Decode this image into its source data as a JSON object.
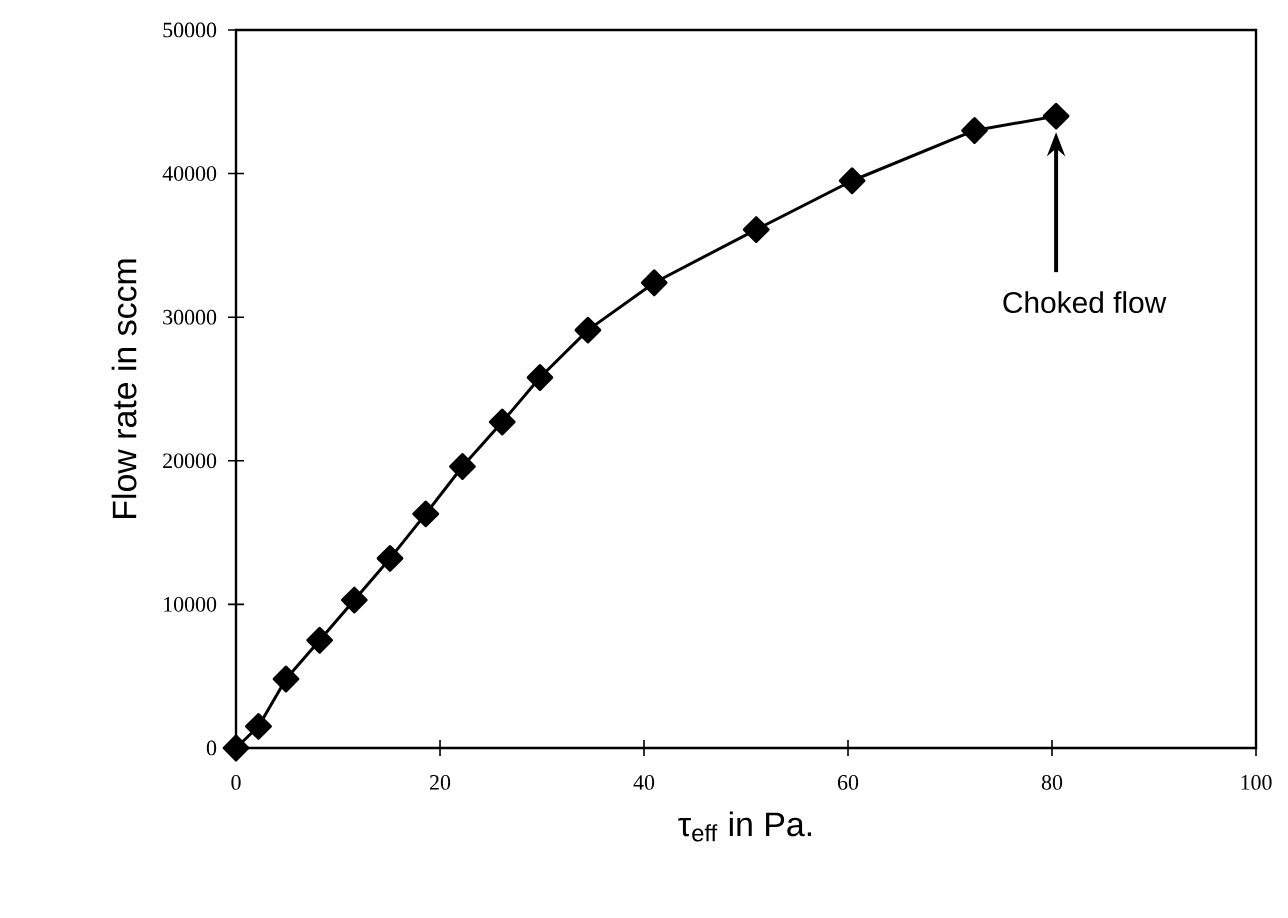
{
  "chart_data": {
    "type": "line",
    "xlabel": "τ$_{eff}$ in Pa.",
    "ylabel": "Flow rate in sccm",
    "x": [
      0,
      2.2,
      4.9,
      8.2,
      11.6,
      15.1,
      18.6,
      22.2,
      26.1,
      29.8,
      34.5,
      41.0,
      51.0,
      60.4,
      72.4,
      80.4
    ],
    "series": [
      {
        "color": "#000000",
        "values": [
          0,
          1500,
          4800,
          7500,
          10300,
          13200,
          16300,
          19600,
          22700,
          25800,
          29100,
          32400,
          36100,
          39500,
          43000,
          44000
        ]
      }
    ],
    "xlim": [
      0,
      100
    ],
    "xticks": [
      0,
      20,
      40,
      60,
      80,
      100
    ],
    "ylim": [
      0,
      50000
    ],
    "yticks": [
      0,
      10000,
      20000,
      30000,
      40000,
      50000
    ],
    "marker": "diamond",
    "line_style": "solid",
    "grid": false,
    "annotations": [
      "Choked flow"
    ]
  }
}
